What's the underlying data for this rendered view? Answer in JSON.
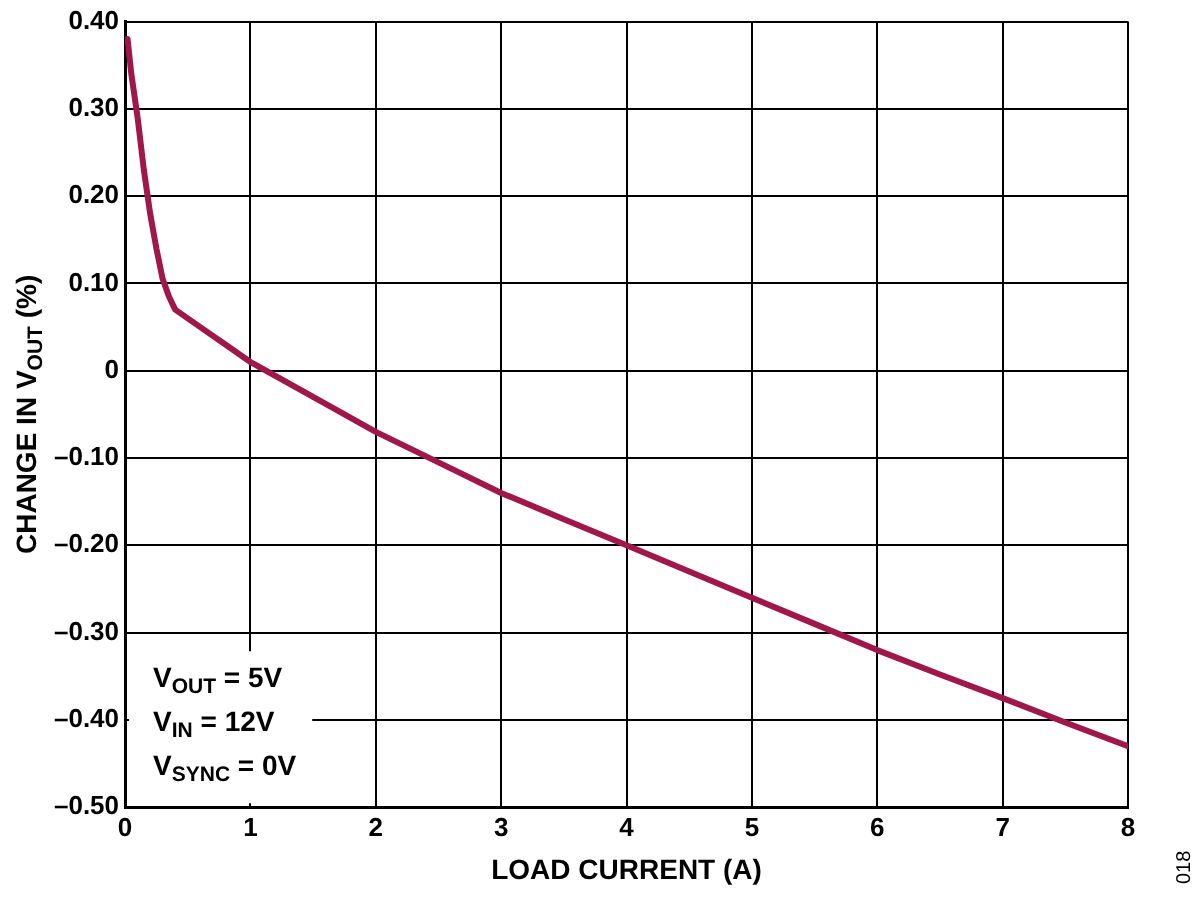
{
  "chart_data": {
    "type": "line",
    "xlabel": "LOAD CURRENT (A)",
    "ylabel": "CHANGE IN V$_{OUT}$ (%)",
    "xlim": [
      0,
      8
    ],
    "xticks": [
      0,
      1,
      2,
      3,
      4,
      5,
      6,
      7,
      8
    ],
    "ylim": [
      -0.5,
      0.4
    ],
    "yticks": [
      {
        "value": 0.4,
        "label": "0.40"
      },
      {
        "value": 0.3,
        "label": "0.30"
      },
      {
        "value": 0.2,
        "label": "0.20"
      },
      {
        "value": 0.1,
        "label": "0.10"
      },
      {
        "value": 0,
        "label": "0"
      },
      {
        "value": -0.1,
        "label": "–0.10"
      },
      {
        "value": -0.2,
        "label": "–0.20"
      },
      {
        "value": -0.3,
        "label": "–0.30"
      },
      {
        "value": -0.4,
        "label": "–0.40"
      },
      {
        "value": -0.5,
        "label": "–0.50"
      }
    ],
    "grid": true,
    "legend": false,
    "marker": "none",
    "line_style": "solid",
    "series": [
      {
        "color": "#a0174a",
        "x": [
          0.02,
          0.05,
          0.1,
          0.15,
          0.2,
          0.25,
          0.3,
          0.35,
          0.4,
          0.5,
          0.6,
          0.8,
          1,
          1.5,
          2,
          2.5,
          3,
          3.5,
          4,
          4.5,
          5,
          5.5,
          6,
          6.5,
          7,
          7.5,
          8
        ],
        "values": [
          0.38,
          0.34,
          0.29,
          0.23,
          0.18,
          0.14,
          0.105,
          0.085,
          0.07,
          0.06,
          0.05,
          0.03,
          0.01,
          -0.03,
          -0.07,
          -0.105,
          -0.14,
          -0.17,
          -0.2,
          -0.23,
          -0.26,
          -0.29,
          -0.32,
          -0.348,
          -0.375,
          -0.403,
          -0.43
        ]
      }
    ],
    "annotations": [
      "V$_{OUT}$ = 5V",
      "V$_{IN}$ = 12V",
      "V$_{SYNC}$ = 0V",
      "018"
    ]
  }
}
